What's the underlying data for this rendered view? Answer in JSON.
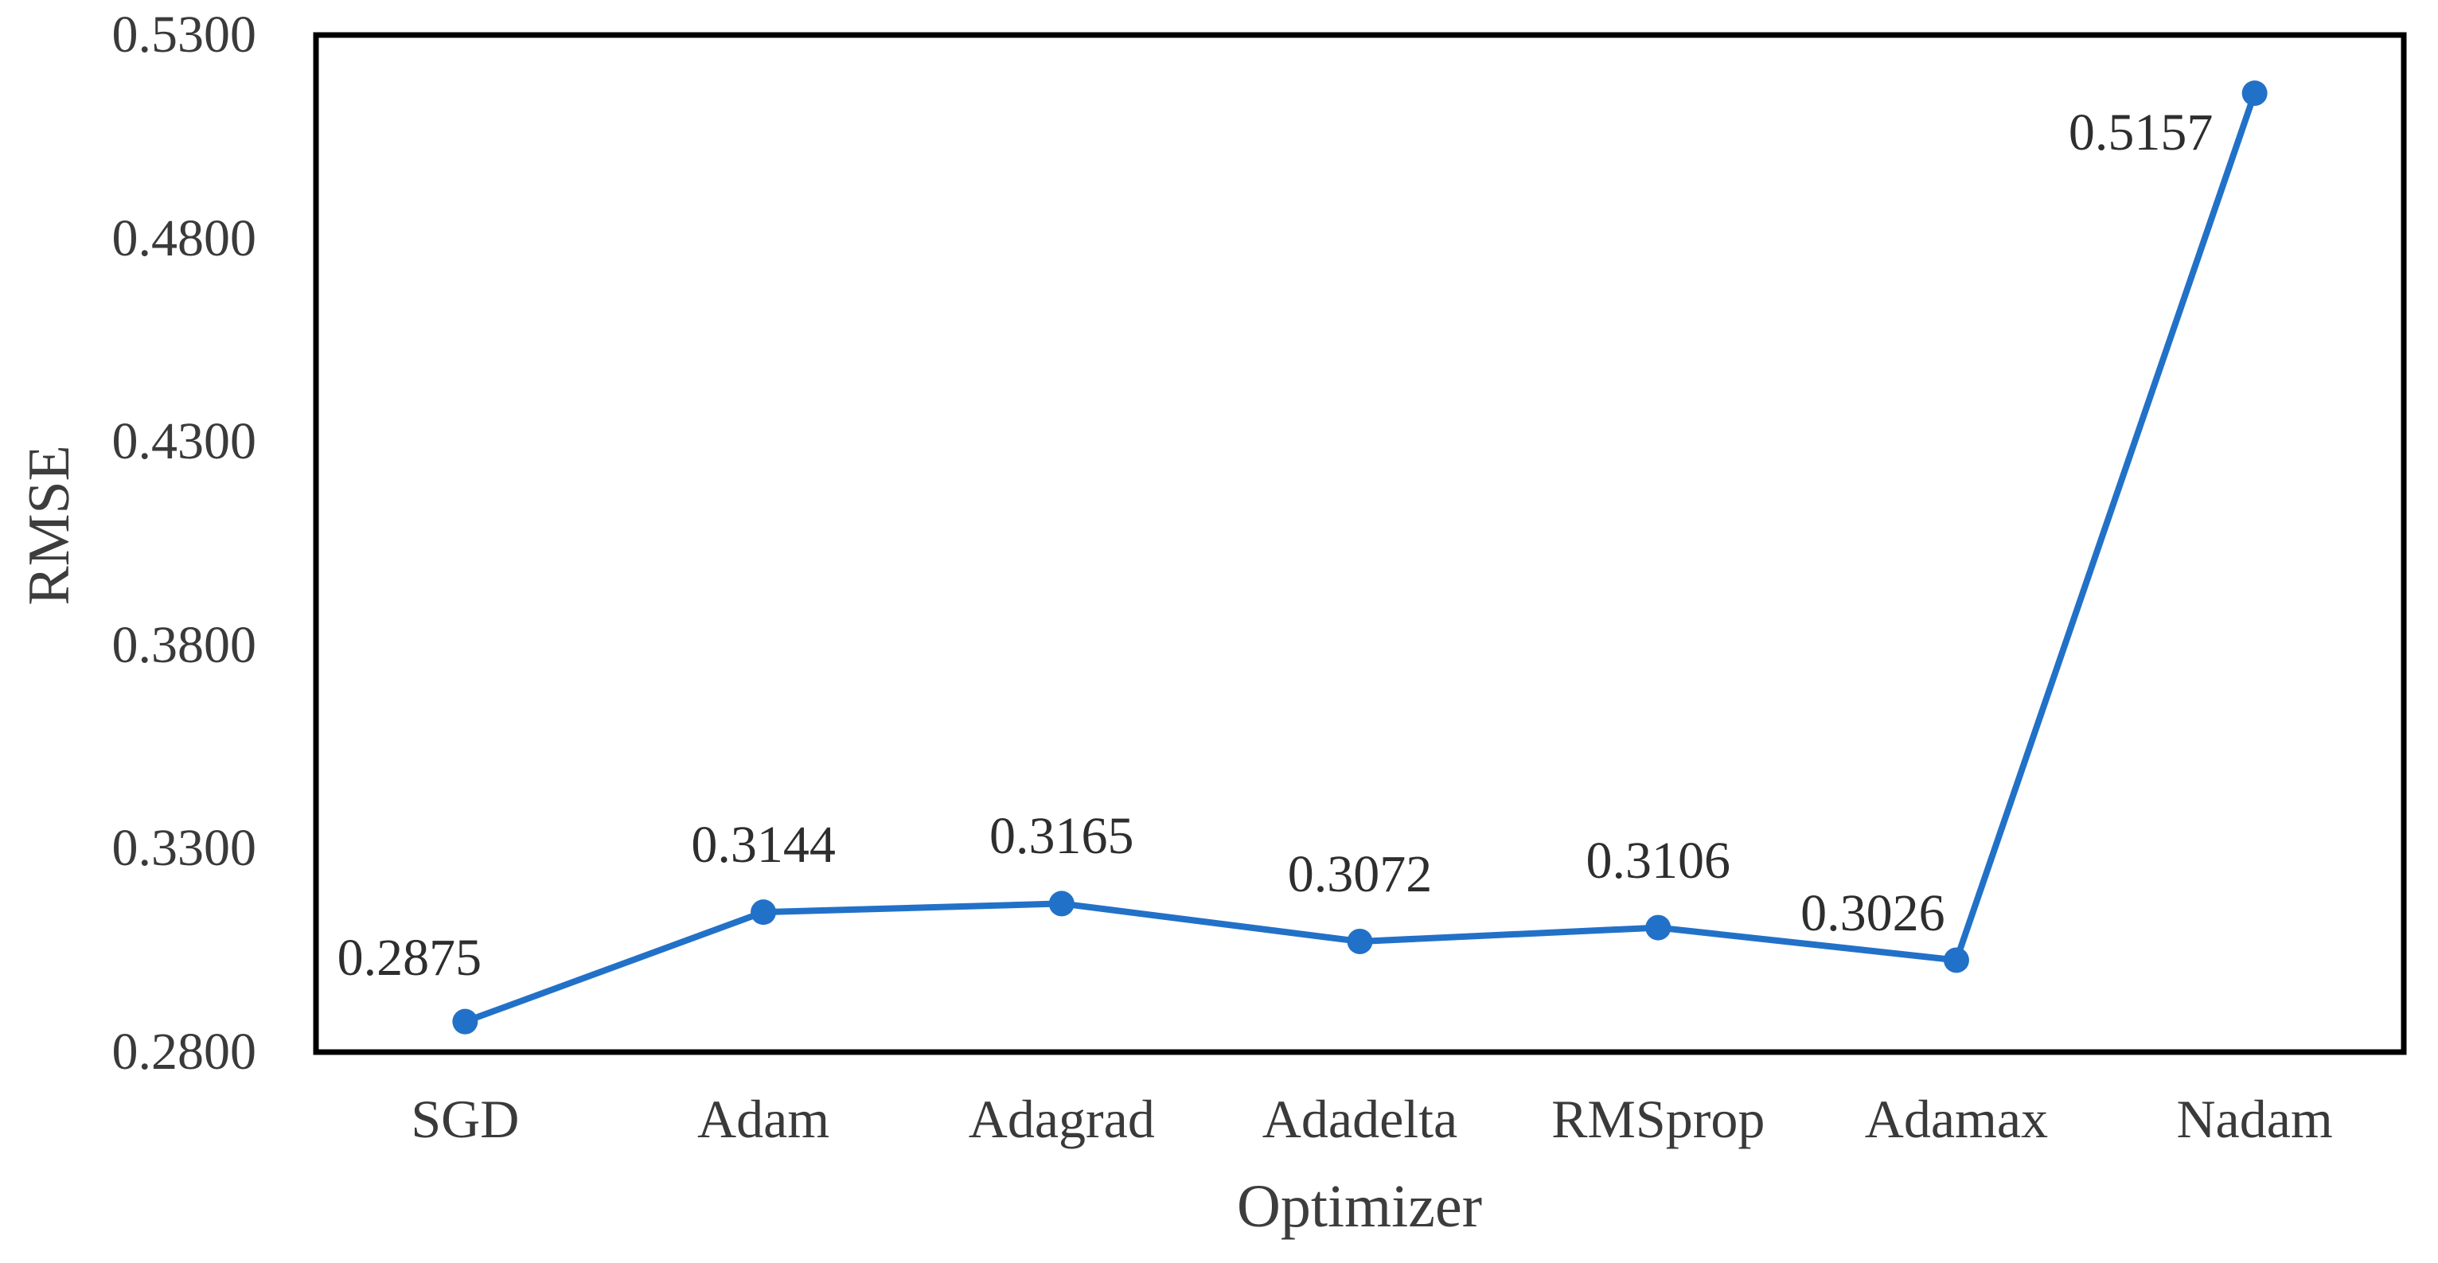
{
  "chart_data": {
    "type": "line",
    "title": "",
    "xlabel": "Optimizer",
    "ylabel": "RMSE",
    "categories": [
      "SGD",
      "Adam",
      "Adagrad",
      "Adadelta",
      "RMSprop",
      "Adamax",
      "Nadam"
    ],
    "series": [
      {
        "name": "RMSE",
        "values": [
          0.2875,
          0.3144,
          0.3165,
          0.3072,
          0.3106,
          0.3026,
          0.5157
        ],
        "point_labels": [
          "0.2875",
          "0.3144",
          "0.3165",
          "0.3072",
          "0.3106",
          "0.3026",
          "0.5157"
        ]
      }
    ],
    "ylim": [
      0.28,
      0.53
    ],
    "ytick_labels": [
      "0.2800",
      "0.3300",
      "0.3800",
      "0.4300",
      "0.4800",
      "0.5300"
    ],
    "ytick_values": [
      0.28,
      0.33,
      0.38,
      0.43,
      0.48,
      0.53
    ],
    "grid": "off",
    "legend": "none",
    "marker": "circle",
    "series_color": "#2271c8",
    "plot_border_color": "#000000",
    "text_color": "#3a3a3a"
  }
}
